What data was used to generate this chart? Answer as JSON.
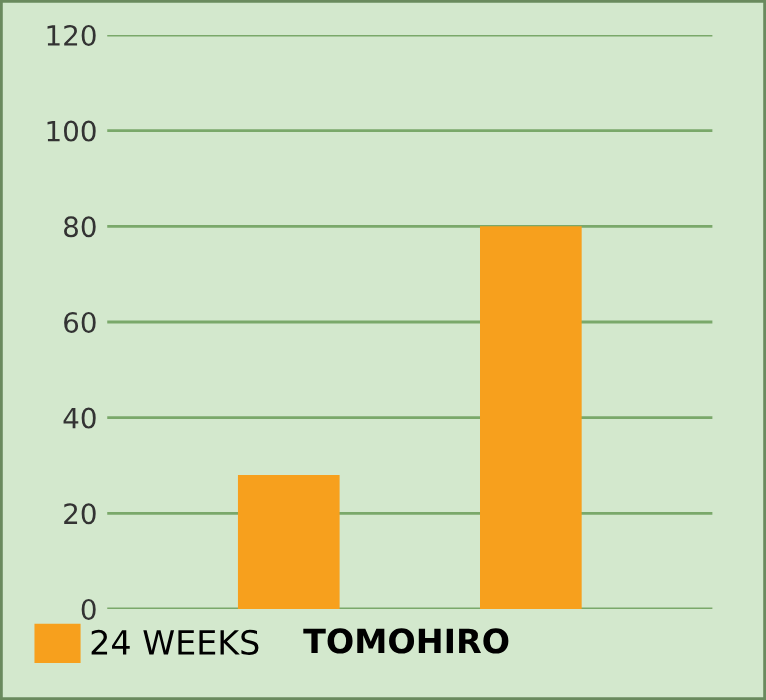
{
  "chart_data": {
    "type": "bar",
    "categories": [
      null,
      null
    ],
    "series": [
      {
        "name": "24 WEEKS",
        "color": "#f7a01d",
        "values": [
          28,
          80
        ]
      }
    ],
    "ylim": [
      0,
      120
    ],
    "yticks": [
      0,
      20,
      40,
      60,
      80,
      100,
      120
    ],
    "grid": "y",
    "legend": "bottom left",
    "annotations": [
      "TOMOHIRO"
    ]
  }
}
